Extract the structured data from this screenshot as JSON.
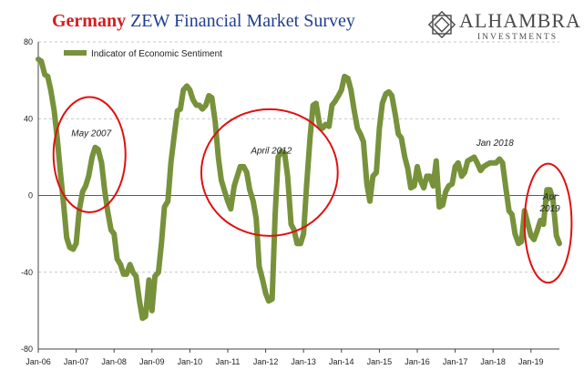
{
  "header": {
    "title_accent": "Germany",
    "title_rest": "ZEW Financial Market Survey"
  },
  "logo": {
    "name": "ALHAMBRA",
    "sub": "INVESTMENTS",
    "icon": "geometric-star-icon"
  },
  "colors": {
    "series": "#77923b",
    "title_blue": "#1f3f8f",
    "title_red": "#d21f1f",
    "annotation_red": "#e01010",
    "zero_line": "#3b5ea8"
  },
  "chart_data": {
    "type": "line",
    "title": "Germany ZEW Financial Market Survey",
    "xlabel": "",
    "ylabel": "",
    "ylim": [
      -80,
      80
    ],
    "yticks": [
      80,
      40,
      0,
      -40,
      -80
    ],
    "xlim": [
      2006.0,
      2019.75
    ],
    "xticks": [
      {
        "label": "Jan-06",
        "x": 2006.0
      },
      {
        "label": "Jan-07",
        "x": 2007.0
      },
      {
        "label": "Jan-08",
        "x": 2008.0
      },
      {
        "label": "Jan-09",
        "x": 2009.0
      },
      {
        "label": "Jan-10",
        "x": 2010.0
      },
      {
        "label": "Jan-11",
        "x": 2011.0
      },
      {
        "label": "Jan-12",
        "x": 2012.0
      },
      {
        "label": "Jan-13",
        "x": 2013.0
      },
      {
        "label": "Jan-14",
        "x": 2014.0
      },
      {
        "label": "Jan-15",
        "x": 2015.0
      },
      {
        "label": "Jan-16",
        "x": 2016.0
      },
      {
        "label": "Jan-17",
        "x": 2017.0
      },
      {
        "label": "Jan-18",
        "x": 2018.0
      },
      {
        "label": "Jan-19",
        "x": 2019.0
      }
    ],
    "legend": "top-left",
    "grid": "horizontal-dashed",
    "series": [
      {
        "name": "Indicator of Economic Sentiment",
        "points": [
          [
            2006.0,
            71
          ],
          [
            2006.08,
            70
          ],
          [
            2006.17,
            63
          ],
          [
            2006.25,
            62
          ],
          [
            2006.33,
            55
          ],
          [
            2006.42,
            44
          ],
          [
            2006.5,
            30
          ],
          [
            2006.58,
            13
          ],
          [
            2006.67,
            -5
          ],
          [
            2006.75,
            -22
          ],
          [
            2006.83,
            -27
          ],
          [
            2006.92,
            -28
          ],
          [
            2007.0,
            -25
          ],
          [
            2007.08,
            -8
          ],
          [
            2007.17,
            2
          ],
          [
            2007.25,
            5
          ],
          [
            2007.33,
            10
          ],
          [
            2007.42,
            20
          ],
          [
            2007.5,
            25
          ],
          [
            2007.58,
            24
          ],
          [
            2007.67,
            17
          ],
          [
            2007.75,
            3
          ],
          [
            2007.83,
            -8
          ],
          [
            2007.92,
            -18
          ],
          [
            2008.0,
            -20
          ],
          [
            2008.08,
            -33
          ],
          [
            2008.17,
            -36
          ],
          [
            2008.25,
            -41
          ],
          [
            2008.33,
            -41
          ],
          [
            2008.42,
            -36
          ],
          [
            2008.5,
            -40
          ],
          [
            2008.58,
            -42
          ],
          [
            2008.67,
            -55
          ],
          [
            2008.75,
            -64
          ],
          [
            2008.83,
            -63
          ],
          [
            2008.92,
            -44
          ],
          [
            2009.0,
            -60
          ],
          [
            2009.08,
            -42
          ],
          [
            2009.17,
            -40
          ],
          [
            2009.25,
            -25
          ],
          [
            2009.33,
            -6
          ],
          [
            2009.42,
            -3
          ],
          [
            2009.5,
            17
          ],
          [
            2009.58,
            30
          ],
          [
            2009.67,
            44
          ],
          [
            2009.75,
            45
          ],
          [
            2009.83,
            55
          ],
          [
            2009.92,
            57
          ],
          [
            2010.0,
            55
          ],
          [
            2010.08,
            50
          ],
          [
            2010.17,
            47
          ],
          [
            2010.25,
            47
          ],
          [
            2010.33,
            45
          ],
          [
            2010.42,
            47
          ],
          [
            2010.5,
            52
          ],
          [
            2010.58,
            51
          ],
          [
            2010.67,
            38
          ],
          [
            2010.75,
            20
          ],
          [
            2010.83,
            8
          ],
          [
            2010.92,
            2
          ],
          [
            2011.0,
            -3
          ],
          [
            2011.08,
            -7
          ],
          [
            2011.17,
            5
          ],
          [
            2011.25,
            10
          ],
          [
            2011.33,
            15
          ],
          [
            2011.42,
            15
          ],
          [
            2011.5,
            12
          ],
          [
            2011.58,
            3
          ],
          [
            2011.67,
            -3
          ],
          [
            2011.75,
            -12
          ],
          [
            2011.83,
            -37
          ],
          [
            2011.92,
            -44
          ],
          [
            2012.0,
            -51
          ],
          [
            2012.08,
            -55
          ],
          [
            2012.17,
            -54
          ],
          [
            2012.25,
            -10
          ],
          [
            2012.33,
            20
          ],
          [
            2012.42,
            23
          ],
          [
            2012.5,
            22
          ],
          [
            2012.58,
            10
          ],
          [
            2012.67,
            -15
          ],
          [
            2012.75,
            -18
          ],
          [
            2012.83,
            -25
          ],
          [
            2012.92,
            -25
          ],
          [
            2013.0,
            -20
          ],
          [
            2013.08,
            5
          ],
          [
            2013.17,
            30
          ],
          [
            2013.25,
            47
          ],
          [
            2013.33,
            48
          ],
          [
            2013.42,
            37
          ],
          [
            2013.5,
            35
          ],
          [
            2013.58,
            37
          ],
          [
            2013.67,
            36
          ],
          [
            2013.75,
            47
          ],
          [
            2013.83,
            49
          ],
          [
            2013.92,
            52
          ],
          [
            2014.0,
            55
          ],
          [
            2014.08,
            62
          ],
          [
            2014.17,
            61
          ],
          [
            2014.25,
            55
          ],
          [
            2014.33,
            45
          ],
          [
            2014.42,
            35
          ],
          [
            2014.5,
            32
          ],
          [
            2014.58,
            28
          ],
          [
            2014.67,
            6
          ],
          [
            2014.75,
            -3
          ],
          [
            2014.83,
            10
          ],
          [
            2014.92,
            12
          ],
          [
            2015.0,
            35
          ],
          [
            2015.08,
            48
          ],
          [
            2015.17,
            53
          ],
          [
            2015.25,
            54
          ],
          [
            2015.33,
            52
          ],
          [
            2015.42,
            42
          ],
          [
            2015.5,
            32
          ],
          [
            2015.58,
            30
          ],
          [
            2015.67,
            20
          ],
          [
            2015.75,
            14
          ],
          [
            2015.83,
            4
          ],
          [
            2015.92,
            5
          ],
          [
            2016.0,
            15
          ],
          [
            2016.08,
            8
          ],
          [
            2016.17,
            4
          ],
          [
            2016.25,
            10
          ],
          [
            2016.33,
            10
          ],
          [
            2016.42,
            5
          ],
          [
            2016.5,
            18
          ],
          [
            2016.58,
            -6
          ],
          [
            2016.67,
            -5
          ],
          [
            2016.75,
            2
          ],
          [
            2016.83,
            5
          ],
          [
            2016.92,
            6
          ],
          [
            2017.0,
            15
          ],
          [
            2017.08,
            17
          ],
          [
            2017.17,
            10
          ],
          [
            2017.25,
            12
          ],
          [
            2017.33,
            18
          ],
          [
            2017.42,
            19
          ],
          [
            2017.5,
            20
          ],
          [
            2017.58,
            17
          ],
          [
            2017.67,
            13
          ],
          [
            2017.75,
            15
          ],
          [
            2017.83,
            16
          ],
          [
            2017.92,
            17
          ],
          [
            2018.0,
            17
          ],
          [
            2018.08,
            17
          ],
          [
            2018.17,
            19
          ],
          [
            2018.25,
            17
          ],
          [
            2018.33,
            5
          ],
          [
            2018.42,
            -8
          ],
          [
            2018.5,
            -10
          ],
          [
            2018.58,
            -20
          ],
          [
            2018.67,
            -25
          ],
          [
            2018.75,
            -24
          ],
          [
            2018.83,
            -8
          ],
          [
            2018.92,
            -15
          ],
          [
            2019.0,
            -21
          ],
          [
            2019.08,
            -23
          ],
          [
            2019.17,
            -18
          ],
          [
            2019.25,
            -13
          ],
          [
            2019.33,
            -15
          ],
          [
            2019.42,
            3
          ],
          [
            2019.5,
            3
          ],
          [
            2019.58,
            -2
          ],
          [
            2019.67,
            -21
          ],
          [
            2019.75,
            -25
          ]
        ]
      }
    ],
    "annotations": [
      {
        "lines": [
          "May 2007"
        ],
        "x": 2007.4,
        "y": 29,
        "circle_rx_years": 0.95,
        "circle_ry": 30
      },
      {
        "lines": [
          "April 2012"
        ],
        "x": 2012.15,
        "y": 20,
        "circle_rx_years": 1.8,
        "circle_ry": 33
      },
      {
        "lines": [
          "Jan 2018"
        ],
        "x": 2018.05,
        "y": 24,
        "circle": false
      },
      {
        "lines": [
          "Apr",
          "2019"
        ],
        "x": 2019.5,
        "y": -4,
        "circle_rx_years": 0.62,
        "circle_ry": 31
      }
    ]
  }
}
